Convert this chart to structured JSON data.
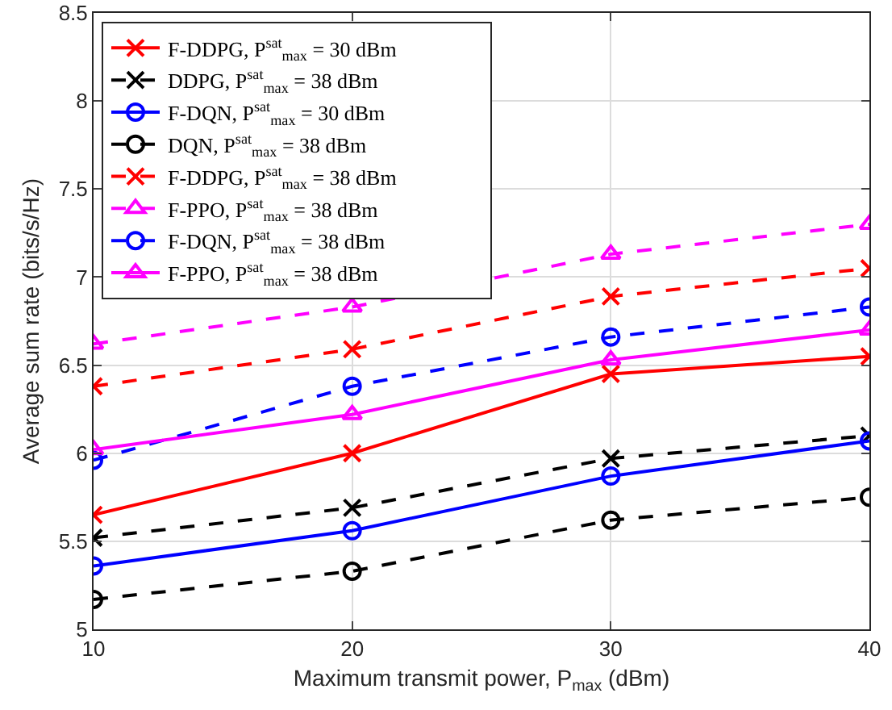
{
  "chart_data": {
    "type": "line",
    "xlabel": "Maximum transmit power, P$_{max}$ (dBm)",
    "ylabel": "Average sum rate (bits/s/Hz)",
    "x": [
      10,
      20,
      30,
      40
    ],
    "xlim": [
      10,
      40
    ],
    "xticks": [
      10,
      20,
      30,
      40
    ],
    "ylim": [
      5,
      8.5
    ],
    "yticks": [
      5,
      5.5,
      6,
      6.5,
      7,
      7.5,
      8,
      8.5
    ],
    "grid": true,
    "legend": "top left",
    "series": [
      {
        "name": "F-DDPG, P$^{sat}$$_{max}$ = 30 dBm",
        "color": "#ff0000",
        "marker": "cross",
        "line_style": "solid",
        "values": [
          5.65,
          6.0,
          6.45,
          6.55
        ]
      },
      {
        "name": "DDPG, P$^{sat}$$_{max}$ = 38 dBm",
        "color": "#000000",
        "marker": "cross",
        "line_style": "dashed",
        "values": [
          5.52,
          5.69,
          5.97,
          6.1
        ]
      },
      {
        "name": "F-DQN, P$^{sat}$$_{max}$ = 30 dBm",
        "color": "#0000ff",
        "marker": "circle",
        "line_style": "solid",
        "values": [
          5.36,
          5.56,
          5.87,
          6.07
        ]
      },
      {
        "name": "DQN, P$^{sat}$$_{max}$ = 38 dBm",
        "color": "#000000",
        "marker": "circle",
        "line_style": "dashed",
        "values": [
          5.17,
          5.33,
          5.62,
          5.75
        ]
      },
      {
        "name": "F-DDPG, P$^{sat}$$_{max}$ = 38 dBm",
        "color": "#ff0000",
        "marker": "cross",
        "line_style": "dashed",
        "values": [
          6.38,
          6.59,
          6.89,
          7.05
        ]
      },
      {
        "name": "F-PPO, P$^{sat}$$_{max}$ = 38 dBm",
        "color": "#ff00ff",
        "marker": "triangle",
        "line_style": "dashed",
        "values": [
          6.62,
          6.83,
          7.13,
          7.3
        ]
      },
      {
        "name": "F-DQN, P$^{sat}$$_{max}$ = 38 dBm",
        "color": "#0000ff",
        "marker": "circle",
        "line_style": "dashed",
        "values": [
          5.96,
          6.38,
          6.66,
          6.83
        ]
      },
      {
        "name": "F-PPO, P$^{sat}$$_{max}$ = 38 dBm",
        "color": "#ff00ff",
        "marker": "triangle",
        "line_style": "solid",
        "values": [
          6.02,
          6.22,
          6.53,
          6.7
        ]
      }
    ]
  }
}
